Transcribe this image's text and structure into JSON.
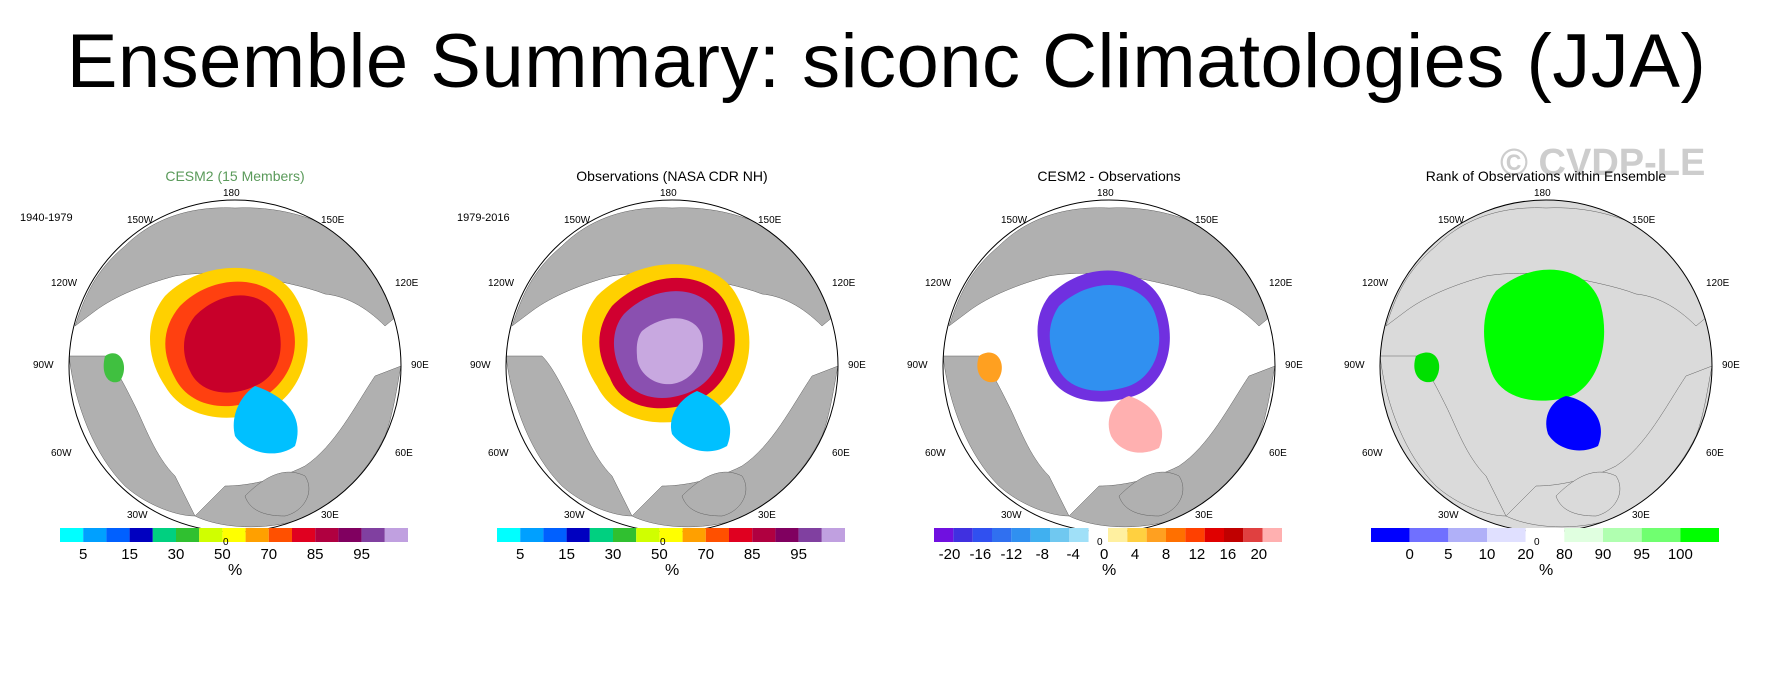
{
  "title": "Ensemble Summary: siconc Climatologies (JJA)",
  "watermark": "© CVDP-LE",
  "colors": {
    "ocean": "#ffffff",
    "land": "#b0b0b0",
    "rank_land": "#dadada"
  },
  "panels": [
    {
      "title": "CESM2 (15 Members)",
      "title_color": "#5a9a5a",
      "period": "1940-1979",
      "lon_labels": {
        "n": "180",
        "nw": "150W",
        "ne": "150E",
        "wnw": "120W",
        "ene": "120E",
        "w": "90W",
        "e": "90E",
        "wsw": "60W",
        "ese": "60E",
        "sw": "30W",
        "se": "30E",
        "s": "0"
      },
      "colorbar": {
        "colors": [
          "#00ffff",
          "#00a0ff",
          "#0060ff",
          "#0000c0",
          "#00d080",
          "#30c030",
          "#d0ff00",
          "#ffff00",
          "#ffa000",
          "#ff5000",
          "#e00020",
          "#b00040",
          "#800060",
          "#8040a0",
          "#c0a0e0"
        ],
        "labels": [
          "5",
          "15",
          "30",
          "50",
          "70",
          "85",
          "95"
        ],
        "units": "%"
      }
    },
    {
      "title": "Observations (NASA CDR NH)",
      "title_color": "#000000",
      "period": "1979-2016",
      "lon_labels": {
        "n": "180",
        "nw": "150W",
        "ne": "150E",
        "wnw": "120W",
        "ene": "120E",
        "w": "90W",
        "e": "90E",
        "wsw": "60W",
        "ese": "60E",
        "sw": "30W",
        "se": "30E",
        "s": "0"
      },
      "colorbar": {
        "colors": [
          "#00ffff",
          "#00a0ff",
          "#0060ff",
          "#0000c0",
          "#00d080",
          "#30c030",
          "#d0ff00",
          "#ffff00",
          "#ffa000",
          "#ff5000",
          "#e00020",
          "#b00040",
          "#800060",
          "#8040a0",
          "#c0a0e0"
        ],
        "labels": [
          "5",
          "15",
          "30",
          "50",
          "70",
          "85",
          "95"
        ],
        "units": "%"
      }
    },
    {
      "title": "CESM2 - Observations",
      "title_color": "#000000",
      "period": "",
      "lon_labels": {
        "n": "180",
        "nw": "150W",
        "ne": "150E",
        "wnw": "120W",
        "ene": "120E",
        "w": "90W",
        "e": "90E",
        "wsw": "60W",
        "ese": "60E",
        "sw": "30W",
        "se": "30E",
        "s": "0"
      },
      "colorbar": {
        "colors": [
          "#7010e0",
          "#4030e0",
          "#3050f0",
          "#3070f0",
          "#3090f0",
          "#40b0f0",
          "#70c8f0",
          "#a0e0f8",
          "#ffffff",
          "#fff0a0",
          "#ffd040",
          "#ffa020",
          "#ff7000",
          "#ff4000",
          "#e00000",
          "#c00000",
          "#e04040",
          "#ffb0b0"
        ],
        "labels": [
          "-20",
          "-16",
          "-12",
          "-8",
          "-4",
          "0",
          "4",
          "8",
          "12",
          "16",
          "20"
        ],
        "units": "%"
      }
    },
    {
      "title": "Rank of Observations within Ensemble",
      "title_color": "#000000",
      "period": "",
      "lon_labels": {
        "n": "180",
        "nw": "150W",
        "ne": "150E",
        "wnw": "120W",
        "ene": "120E",
        "w": "90W",
        "e": "90E",
        "wsw": "60W",
        "ese": "60E",
        "sw": "30W",
        "se": "30E",
        "s": "0"
      },
      "colorbar": {
        "colors": [
          "#0000ff",
          "#7070ff",
          "#b0b0f8",
          "#e0e0ff",
          "#ffffff",
          "#e0ffe0",
          "#b0ffb0",
          "#70ff70",
          "#00ff00"
        ],
        "labels": [
          "0",
          "5",
          "10",
          "20",
          "80",
          "90",
          "95",
          "100"
        ],
        "units": "%"
      }
    }
  ]
}
